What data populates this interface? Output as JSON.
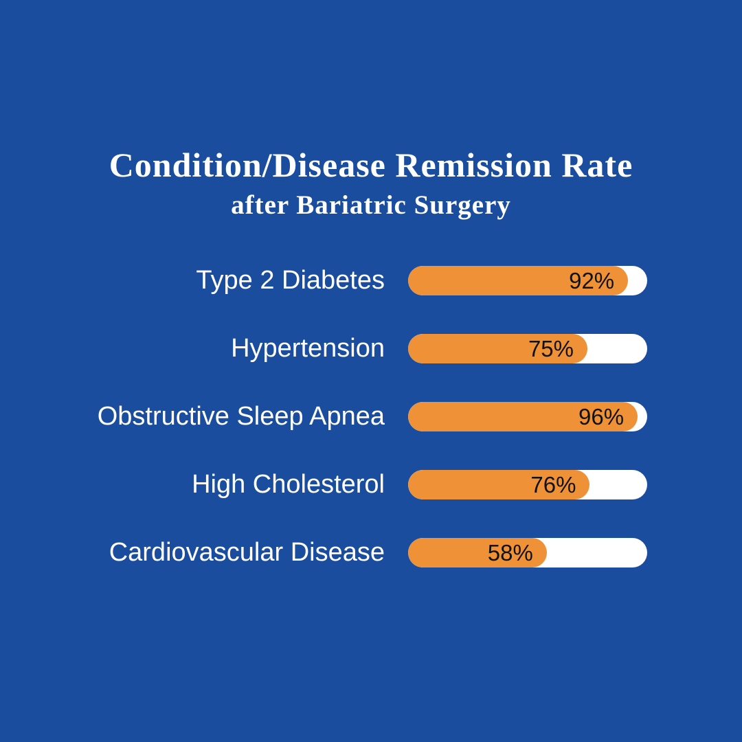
{
  "title": "Condition/Disease Remission Rate",
  "subtitle": "after Bariatric Surgery",
  "colors": {
    "background": "#1A4D9E",
    "bar_fill": "#EE9137",
    "bar_track": "#FFFFFF",
    "value_text": "#121212",
    "label_text": "#FFFFFF",
    "title_text": "#FFFFFF"
  },
  "chart_data": {
    "type": "bar",
    "orientation": "horizontal",
    "title": "Condition/Disease Remission Rate",
    "subtitle": "after Bariatric Surgery",
    "categories": [
      "Type 2 Diabetes",
      "Hypertension",
      "Obstructive Sleep Apnea",
      "High Cholesterol",
      "Cardiovascular Disease"
    ],
    "values": [
      92,
      75,
      96,
      76,
      58
    ],
    "value_labels": [
      "92%",
      "75%",
      "96%",
      "76%",
      "58%"
    ],
    "xlim": [
      0,
      100
    ],
    "grid": false,
    "legend": false,
    "value_label_position": "inside-end-of-fill"
  }
}
